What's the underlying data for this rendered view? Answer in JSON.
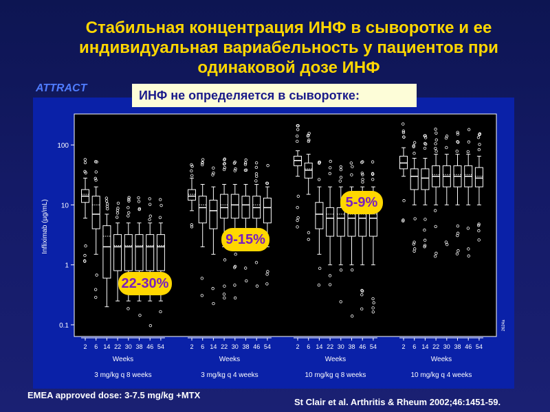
{
  "slide": {
    "title": "Стабильная концентрация ИНФ в сыворотке и ее индивидуальная вариабельность у пациентов при одинаковой дозе ИНФ",
    "attract_label": "ATTRACT",
    "banner": "ИНФ не определяется в сыворотке:",
    "footer_left": "EMEA approved dose: 3-7.5 mg/kg +MTX",
    "footer_right": "St Clair et al. Arthritis & Rheum 2002;46:1451-59.",
    "colors": {
      "title": "#ffd700",
      "attract": "#4f7cff",
      "panel": "#0a21a8",
      "plot_bg": "#000000",
      "badge_bg": "#ffd700",
      "badge_text": "#7a1cc0",
      "banner_bg": "#fdfdd8",
      "banner_text": "#1a1a8a"
    }
  },
  "badges": [
    {
      "label": "22-30%",
      "group": 0
    },
    {
      "label": "9-15%",
      "group": 1
    },
    {
      "label": "5-9%",
      "group": 2
    }
  ],
  "chart_data": {
    "type": "box",
    "ylabel": "Infliximab (µg/mL)",
    "y_scale": "log",
    "ylim": [
      0.07,
      300
    ],
    "yticks": [
      0.1,
      1,
      10,
      100
    ],
    "ytick_labels": [
      "0.1",
      "1",
      "10",
      "100"
    ],
    "xlabel_per_group": "Weeks",
    "side_code": "2624a",
    "groups": [
      {
        "name": "3 mg/kg q 8 weeks",
        "weeks": [
          "2",
          "6",
          "14",
          "22",
          "30",
          "38",
          "46",
          "54"
        ],
        "boxes": [
          {
            "min": 6,
            "q1": 11,
            "median": 14,
            "q3": 18,
            "max": 28,
            "mean": 15
          },
          {
            "min": 1.5,
            "q1": 4,
            "median": 7,
            "q3": 14,
            "max": 20,
            "mean": 10
          },
          {
            "min": 0.2,
            "q1": 0.6,
            "median": 2,
            "q3": 4.5,
            "max": 7,
            "mean": 3
          },
          {
            "min": 0.25,
            "q1": 0.8,
            "median": 2,
            "q3": 3.2,
            "max": 5,
            "mean": 2.1
          },
          {
            "min": 0.25,
            "q1": 0.8,
            "median": 2,
            "q3": 3.2,
            "max": 5,
            "mean": 2.1
          },
          {
            "min": 0.25,
            "q1": 0.8,
            "median": 2,
            "q3": 3.2,
            "max": 5,
            "mean": 2.1
          },
          {
            "min": 0.25,
            "q1": 0.8,
            "median": 2,
            "q3": 3.2,
            "max": 5,
            "mean": 2.1
          },
          {
            "min": 0.25,
            "q1": 0.8,
            "median": 2,
            "q3": 3.2,
            "max": 5,
            "mean": 2.1
          }
        ]
      },
      {
        "name": "3 mg/kg q 4 weeks",
        "weeks": [
          "2",
          "6",
          "14",
          "22",
          "30",
          "38",
          "46",
          "54"
        ],
        "boxes": [
          {
            "min": 8,
            "q1": 12,
            "median": 14,
            "q3": 18,
            "max": 28,
            "mean": 15
          },
          {
            "min": 2,
            "q1": 5,
            "median": 9,
            "q3": 14,
            "max": 22,
            "mean": 10
          },
          {
            "min": 1.5,
            "q1": 4,
            "median": 8,
            "q3": 12,
            "max": 20,
            "mean": 8
          },
          {
            "min": 2,
            "q1": 6,
            "median": 9,
            "q3": 15,
            "max": 22,
            "mean": 10
          },
          {
            "min": 2,
            "q1": 6,
            "median": 10,
            "q3": 15,
            "max": 22,
            "mean": 10
          },
          {
            "min": 2,
            "q1": 6,
            "median": 10,
            "q3": 14,
            "max": 22,
            "mean": 10
          },
          {
            "min": 2,
            "q1": 6,
            "median": 9,
            "q3": 14,
            "max": 22,
            "mean": 10
          },
          {
            "min": 2,
            "q1": 5,
            "median": 9,
            "q3": 13,
            "max": 20,
            "mean": 9
          }
        ]
      },
      {
        "name": "10 mg/kg q 8 weeks",
        "weeks": [
          "2",
          "6",
          "14",
          "22",
          "30",
          "38",
          "46",
          "54"
        ],
        "boxes": [
          {
            "min": 30,
            "q1": 45,
            "median": 55,
            "q3": 65,
            "max": 80,
            "mean": 55
          },
          {
            "min": 15,
            "q1": 28,
            "median": 38,
            "q3": 50,
            "max": 70,
            "mean": 40
          },
          {
            "min": 1.5,
            "q1": 4,
            "median": 7,
            "q3": 11,
            "max": 20,
            "mean": 7
          },
          {
            "min": 1,
            "q1": 3,
            "median": 6,
            "q3": 9,
            "max": 20,
            "mean": 7
          },
          {
            "min": 1,
            "q1": 3,
            "median": 6,
            "q3": 9,
            "max": 20,
            "mean": 7
          },
          {
            "min": 1,
            "q1": 3,
            "median": 6,
            "q3": 9,
            "max": 20,
            "mean": 7
          },
          {
            "min": 1,
            "q1": 3,
            "median": 6,
            "q3": 9,
            "max": 20,
            "mean": 7
          },
          {
            "min": 1,
            "q1": 3,
            "median": 6,
            "q3": 9,
            "max": 20,
            "mean": 7
          }
        ]
      },
      {
        "name": "10 mg/kg q 4 weeks",
        "weeks": [
          "2",
          "6",
          "14",
          "22",
          "30",
          "38",
          "46",
          "54"
        ],
        "boxes": [
          {
            "min": 30,
            "q1": 40,
            "median": 50,
            "q3": 65,
            "max": 90,
            "mean": 50
          },
          {
            "min": 10,
            "q1": 18,
            "median": 30,
            "q3": 40,
            "max": 60,
            "mean": 30
          },
          {
            "min": 10,
            "q1": 18,
            "median": 28,
            "q3": 40,
            "max": 60,
            "mean": 28
          },
          {
            "min": 10,
            "q1": 20,
            "median": 30,
            "q3": 45,
            "max": 70,
            "mean": 32
          },
          {
            "min": 10,
            "q1": 20,
            "median": 30,
            "q3": 45,
            "max": 70,
            "mean": 32
          },
          {
            "min": 10,
            "q1": 20,
            "median": 30,
            "q3": 45,
            "max": 70,
            "mean": 32
          },
          {
            "min": 10,
            "q1": 20,
            "median": 30,
            "q3": 45,
            "max": 70,
            "mean": 32
          },
          {
            "min": 10,
            "q1": 20,
            "median": 28,
            "q3": 42,
            "max": 65,
            "mean": 30
          }
        ]
      }
    ]
  }
}
